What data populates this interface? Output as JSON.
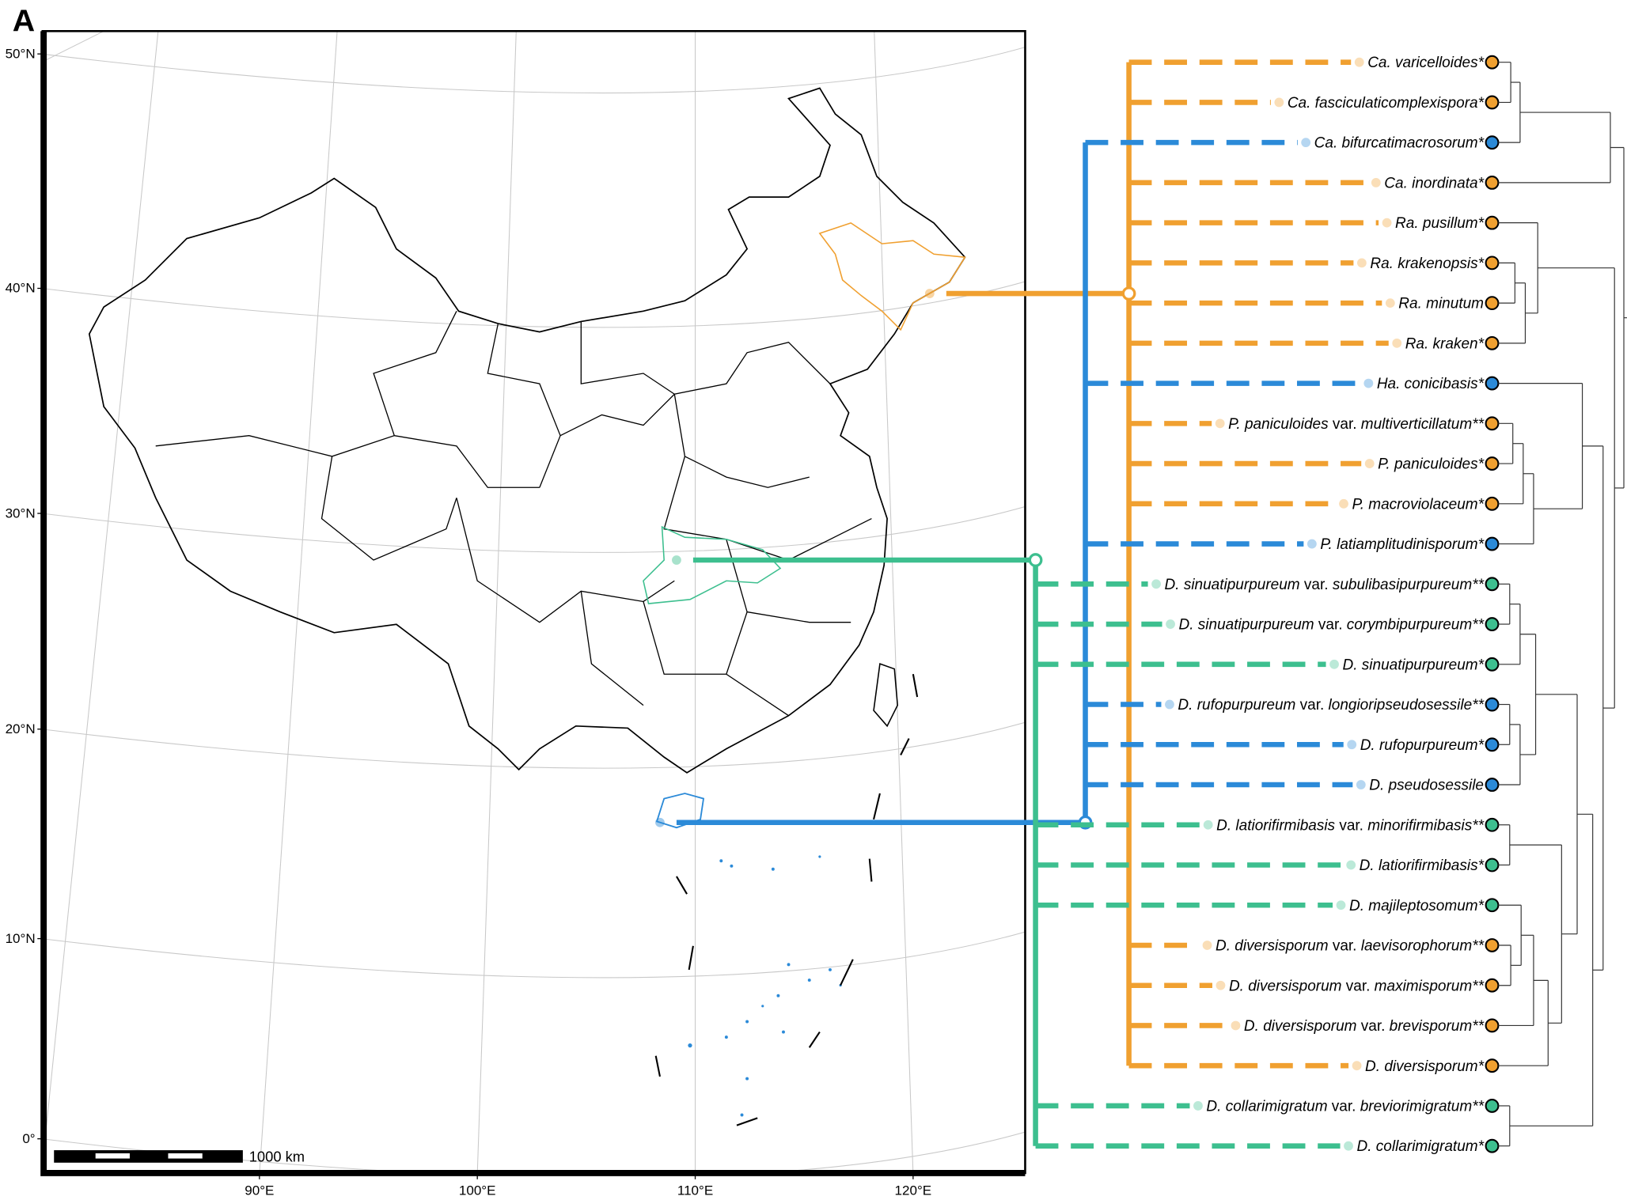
{
  "panel_label": "A",
  "map": {
    "lat_labels": [
      "50°N",
      "40°N",
      "30°N",
      "20°N",
      "10°N",
      "0°"
    ],
    "lon_labels": [
      "90°E",
      "100°E",
      "110°E",
      "120°E"
    ],
    "scale_bar": "1000 km"
  },
  "tree": {
    "taxa": [
      {
        "label": [
          "Ca. varicelloides*"
        ],
        "color": "#f0a030"
      },
      {
        "label": [
          "Ca. fasciculaticomplexispora*"
        ],
        "color": "#f0a030"
      },
      {
        "label": [
          "Ca. bifurcatimacrosorum*"
        ],
        "color": "#2b8ad8"
      },
      {
        "label": [
          "Ca. inordinata*"
        ],
        "color": "#f0a030"
      },
      {
        "label": [
          "Ra. pusillum*"
        ],
        "color": "#f0a030"
      },
      {
        "label": [
          "Ra. krakenopsis*"
        ],
        "color": "#f0a030"
      },
      {
        "label": [
          "Ra. minutum"
        ],
        "color": "#f0a030"
      },
      {
        "label": [
          "Ra. kraken*"
        ],
        "color": "#f0a030"
      },
      {
        "label": [
          "Ha. conicibasis*"
        ],
        "color": "#2b8ad8"
      },
      {
        "label": [
          "P. paniculoides",
          "var.",
          "multiverticillatum**"
        ],
        "color": "#f0a030"
      },
      {
        "label": [
          "P. paniculoides*"
        ],
        "color": "#f0a030"
      },
      {
        "label": [
          "P. macroviolaceum*"
        ],
        "color": "#f0a030"
      },
      {
        "label": [
          "P. latiamplitudinisporum*"
        ],
        "color": "#2b8ad8"
      },
      {
        "label": [
          "D. sinuatipurpureum",
          "var.",
          "subulibasipurpureum**"
        ],
        "color": "#3dbf8f"
      },
      {
        "label": [
          "D. sinuatipurpureum",
          "var.",
          "corymbipurpureum**"
        ],
        "color": "#3dbf8f"
      },
      {
        "label": [
          "D. sinuatipurpureum*"
        ],
        "color": "#3dbf8f"
      },
      {
        "label": [
          "D. rufopurpureum",
          "var.",
          "longioripseudosessile**"
        ],
        "color": "#2b8ad8"
      },
      {
        "label": [
          "D. rufopurpureum*"
        ],
        "color": "#2b8ad8"
      },
      {
        "label": [
          "D. pseudosessile"
        ],
        "color": "#2b8ad8"
      },
      {
        "label": [
          "D. latiorifirmibasis",
          "var.",
          "minorifirmibasis**"
        ],
        "color": "#3dbf8f"
      },
      {
        "label": [
          "D. latiorifirmibasis*"
        ],
        "color": "#3dbf8f"
      },
      {
        "label": [
          "D. majileptosomum*"
        ],
        "color": "#3dbf8f"
      },
      {
        "label": [
          "D. diversisporum",
          "var.",
          "laevisorophorum**"
        ],
        "color": "#f0a030"
      },
      {
        "label": [
          "D. diversisporum",
          "var.",
          "maximisporum**"
        ],
        "color": "#f0a030"
      },
      {
        "label": [
          "D. diversisporum",
          "var.",
          "brevisporum**"
        ],
        "color": "#f0a030"
      },
      {
        "label": [
          "D. diversisporum*"
        ],
        "color": "#f0a030"
      },
      {
        "label": [
          "D. collarimigratum",
          "var.",
          "breviorimigratum**"
        ],
        "color": "#3dbf8f"
      },
      {
        "label": [
          "D. collarimigratum*"
        ],
        "color": "#3dbf8f"
      }
    ]
  }
}
